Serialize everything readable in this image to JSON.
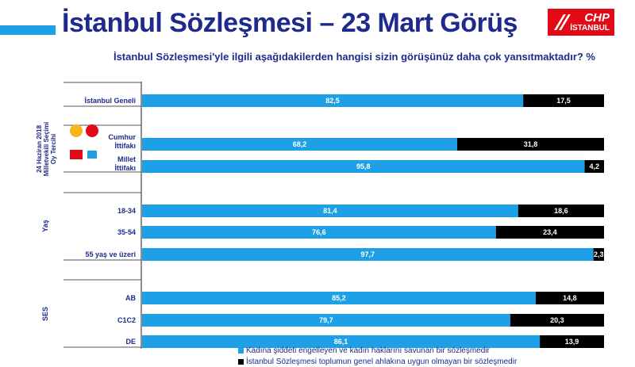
{
  "header": {
    "title": "İstanbul Sözleşmesi – 23 Mart Görüş",
    "subtitle": "İstanbul Sözleşmesi'yle ilgili aşağıdakilerden hangisi sizin görüşünüz daha çok yansıtmaktadır? %",
    "logo_top": "CHP",
    "logo_bottom": "İSTANBUL"
  },
  "colors": {
    "series1": "#1ea0e6",
    "series2": "#000000",
    "title": "#1e2a8c",
    "logo": "#e30a17"
  },
  "chart_data": {
    "type": "bar",
    "orientation": "horizontal",
    "stacked": true,
    "percent": true,
    "categories": [
      "İstanbul Geneli",
      "Cumhur İttifakı",
      "Millet İttifakı",
      "18-34",
      "35-54",
      "55 yaş ve üzeri",
      "AB",
      "C1C2",
      "DE"
    ],
    "groups": [
      {
        "label": "",
        "categories": [
          "İstanbul Geneli"
        ]
      },
      {
        "label": "24 Haziran 2018 Milletvekili Seçimi Oy Tercihi",
        "categories": [
          "Cumhur İttifakı",
          "Millet İttifakı"
        ]
      },
      {
        "label": "Yaş",
        "categories": [
          "18-34",
          "35-54",
          "55 yaş ve üzeri"
        ]
      },
      {
        "label": "SES",
        "categories": [
          "AB",
          "C1C2",
          "DE"
        ]
      }
    ],
    "series": [
      {
        "name": "Kadına şiddeti engelleyen ve kadın haklarını savunan bir sözleşmedir",
        "values": [
          82.5,
          68.2,
          95.8,
          81.4,
          76.6,
          97.7,
          85.2,
          79.7,
          86.1
        ]
      },
      {
        "name": "İstanbul Sözleşmesi toplumun genel ahlakına uygun olmayan bir sözleşmedir",
        "values": [
          17.5,
          31.8,
          4.2,
          18.6,
          23.4,
          2.3,
          14.8,
          20.3,
          13.9
        ]
      }
    ],
    "data_labels": [
      [
        "82,5",
        "68,2",
        "95,8",
        "81,4",
        "76,6",
        "97,7",
        "85,2",
        "79,7",
        "86,1"
      ],
      [
        "17,5",
        "31,8",
        "4,2",
        "18,6",
        "23,4",
        "2,3",
        "14,8",
        "20,3",
        "13,9"
      ]
    ],
    "xlim": [
      0,
      100
    ],
    "legend_position": "bottom"
  }
}
